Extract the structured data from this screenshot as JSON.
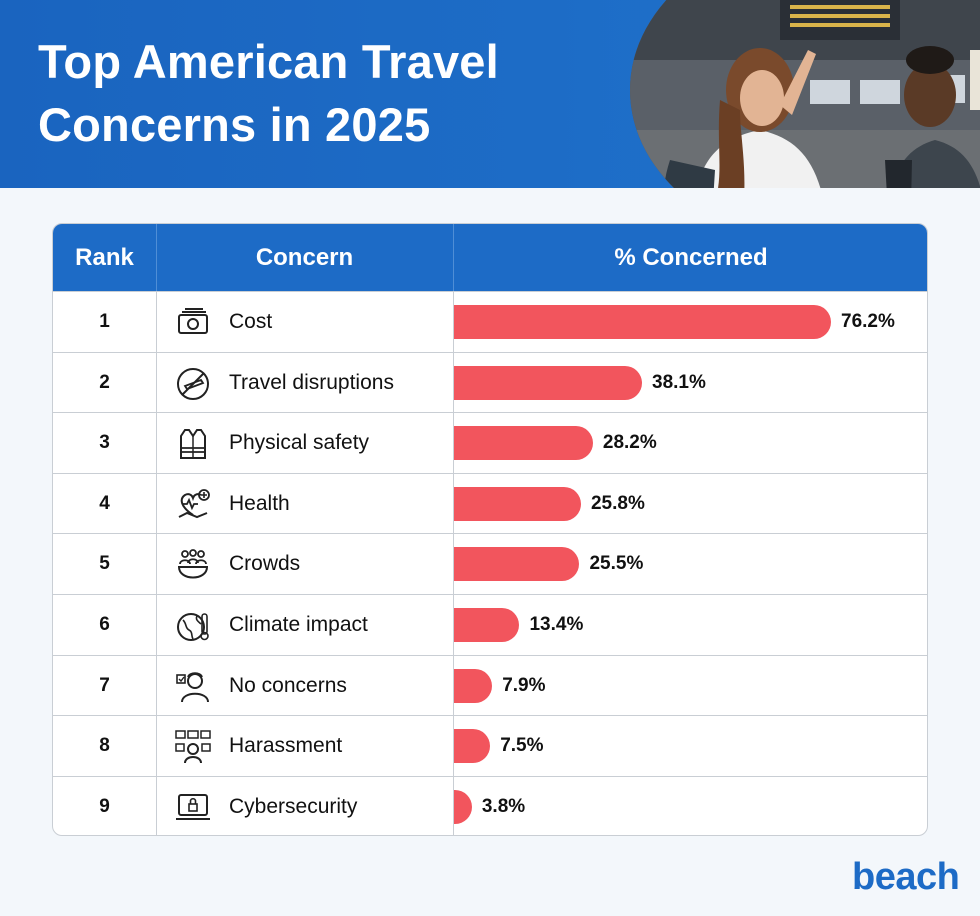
{
  "header": {
    "title": "Top American Travel\nConcerns in 2025"
  },
  "table": {
    "columns": [
      "Rank",
      "Concern",
      "% Concerned"
    ]
  },
  "chart_data": {
    "type": "bar",
    "title": "Top American Travel Concerns in 2025",
    "xlim": [
      0,
      80
    ],
    "categories": [
      "Cost",
      "Travel disruptions",
      "Physical safety",
      "Health",
      "Crowds",
      "Climate impact",
      "No concerns",
      "Harassment",
      "Cybersecurity"
    ],
    "ranks": [
      "1",
      "2",
      "3",
      "4",
      "5",
      "6",
      "7",
      "8",
      "9"
    ],
    "values": [
      76.2,
      38.1,
      28.2,
      25.8,
      25.5,
      13.4,
      7.9,
      7.5,
      3.8
    ],
    "value_labels": [
      "76.2%",
      "38.1%",
      "28.2%",
      "25.8%",
      "25.5%",
      "13.4%",
      "7.9%",
      "7.5%",
      "3.8%"
    ],
    "icons": [
      "money-icon",
      "no-flight-icon",
      "safety-vest-icon",
      "health-icon",
      "crowd-icon",
      "climate-icon",
      "person-icon",
      "harassment-icon",
      "cybersecurity-icon"
    ],
    "bar_color": "#f2555d"
  },
  "colors": {
    "header_blue": "#1d6bc6",
    "bar": "#f2555d"
  },
  "brand": {
    "logo": "beach"
  }
}
